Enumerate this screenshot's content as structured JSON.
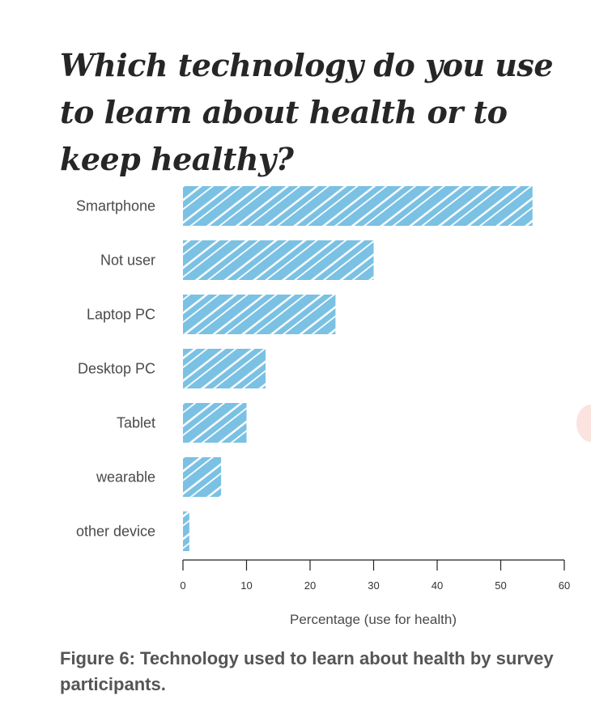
{
  "title": "Which technology do you use to learn about health or to keep healthy?",
  "caption": "Figure 6: Technology used to learn about health by survey participants.",
  "chart_data": {
    "type": "bar",
    "orientation": "horizontal",
    "categories": [
      "Smartphone",
      "Not user",
      "Laptop PC",
      "Desktop PC",
      "Tablet",
      "wearable",
      "other device"
    ],
    "values": [
      55,
      30,
      24,
      13,
      10,
      6,
      1
    ],
    "xlabel": "Percentage (use for health)",
    "ylabel": "",
    "xlim": [
      0,
      60
    ],
    "xticks": [
      0,
      10,
      20,
      30,
      40,
      50,
      60
    ],
    "grid": false,
    "bar_color": "#7ac1e3"
  }
}
